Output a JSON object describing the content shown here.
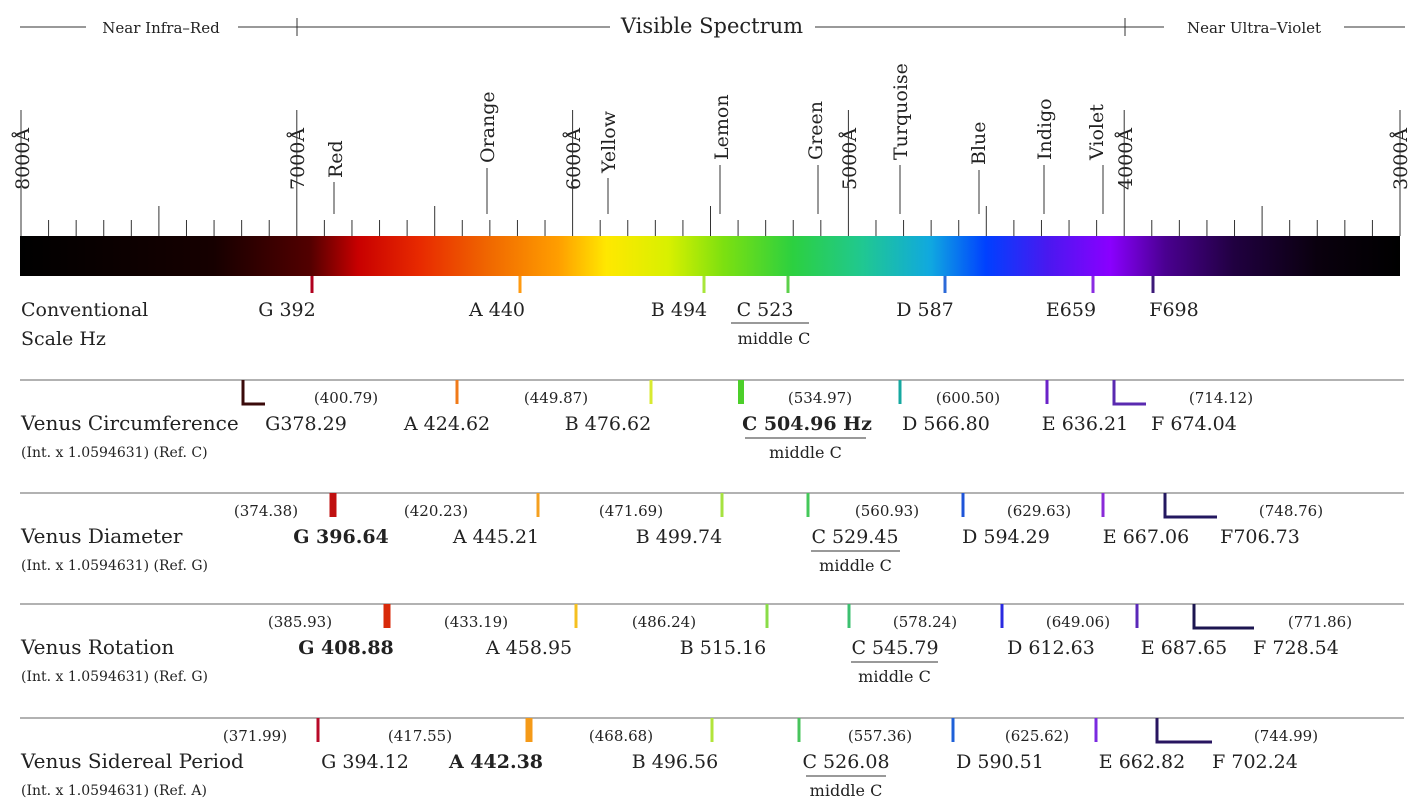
{
  "header": {
    "left": "Near Infra–Red",
    "center": "Visible Spectrum",
    "right": "Near Ultra–Violet"
  },
  "wavelength_labels": [
    "8000Å",
    "7000Å",
    "6000Å",
    "5000Å",
    "4000Å",
    "3000Å"
  ],
  "color_labels": [
    "Red",
    "Orange",
    "Yellow",
    "Lemon",
    "Green",
    "Turquoise",
    "Blue",
    "Indigo",
    "Violet"
  ],
  "conventional": {
    "title": [
      "Conventional",
      "Scale Hz"
    ],
    "notes": [
      {
        "label": "G 392",
        "color": "#b0001e"
      },
      {
        "label": "A 440",
        "color": "#ff9a10"
      },
      {
        "label": "B 494",
        "color": "#a8e63a"
      },
      {
        "label": "C 523",
        "color": "#5cd04a",
        "sub": "middle C"
      },
      {
        "label": "D 587",
        "color": "#2c6ad8"
      },
      {
        "label": "E659",
        "color": "#8a2be2"
      },
      {
        "label": "F698",
        "color": "#3c1a78"
      }
    ]
  },
  "rows": [
    {
      "title": "Venus Circumference",
      "subtitle": "(Int. x 1.0594631) (Ref. C)",
      "notes": [
        {
          "label": "G378.29",
          "color": "#3a0a0a"
        },
        {
          "label": "A 424.62",
          "color": "#f07a18"
        },
        {
          "label": "B 476.62",
          "color": "#d8ea30"
        },
        {
          "label": "C 504.96 Hz",
          "color": "#4ccf2a",
          "bold": true,
          "sub": "middle C"
        },
        {
          "label": "D 566.80",
          "color": "#16a8a0"
        },
        {
          "label": "E 636.21",
          "color": "#6a22c8"
        },
        {
          "label": "F 674.04",
          "color": "#5a2ab0"
        }
      ],
      "intervals": [
        "(400.79)",
        "(449.87)",
        "(534.97)",
        "(600.50)",
        "(714.12)"
      ]
    },
    {
      "title": "Venus Diameter",
      "subtitle": "(Int. x 1.0594631) (Ref. G)",
      "notes": [
        {
          "label": "G 396.64",
          "color": "#c01010",
          "bold": true
        },
        {
          "label": "A 445.21",
          "color": "#f5a020"
        },
        {
          "label": "B 499.74",
          "color": "#a6e240"
        },
        {
          "label": "C 529.45",
          "color": "#44c85a",
          "sub": "middle C"
        },
        {
          "label": "D 594.29",
          "color": "#1e54d8"
        },
        {
          "label": "E 667.06",
          "color": "#8a2ad8"
        },
        {
          "label": "F706.73",
          "color": "#241860"
        }
      ],
      "intervals": [
        "(374.38)",
        "(420.23)",
        "(471.69)",
        "(560.93)",
        "(629.63)",
        "(748.76)"
      ]
    },
    {
      "title": "Venus Rotation",
      "subtitle": "(Int. x 1.0594631) (Ref. G)",
      "notes": [
        {
          "label": "G 408.88",
          "color": "#d82a0a",
          "bold": true
        },
        {
          "label": "A 458.95",
          "color": "#f5c020"
        },
        {
          "label": "B 515.16",
          "color": "#8adc48"
        },
        {
          "label": "C 545.79",
          "color": "#3cc070",
          "sub": "middle C"
        },
        {
          "label": "D 612.63",
          "color": "#2a2ae0"
        },
        {
          "label": "E 687.65",
          "color": "#5a28b8"
        },
        {
          "label": "F 728.54",
          "color": "#1c1650"
        }
      ],
      "intervals": [
        "(385.93)",
        "(433.19)",
        "(486.24)",
        "(578.24)",
        "(649.06)",
        "(771.86)"
      ]
    },
    {
      "title": "Venus Sidereal Period",
      "subtitle": "(Int. x 1.0594631) (Ref. A)",
      "notes": [
        {
          "label": "G 394.12",
          "color": "#b80a28"
        },
        {
          "label": "A 442.38",
          "color": "#f59a18",
          "bold": true
        },
        {
          "label": "B 496.56",
          "color": "#b2e43a"
        },
        {
          "label": "C 526.08",
          "color": "#48c45c",
          "sub": "middle C"
        },
        {
          "label": "D 590.51",
          "color": "#1e60d8"
        },
        {
          "label": "E 662.82",
          "color": "#7a2ae0"
        },
        {
          "label": "F 702.24",
          "color": "#281660"
        }
      ],
      "intervals": [
        "(371.99)",
        "(417.55)",
        "(468.68)",
        "(557.36)",
        "(625.62)",
        "(744.99)"
      ]
    }
  ]
}
